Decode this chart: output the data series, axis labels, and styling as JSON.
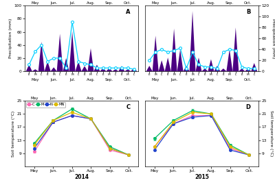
{
  "title_A": "A",
  "title_B": "B",
  "title_C": "C",
  "title_D": "D",
  "year_2014": "2014",
  "year_2015": "2015",
  "precip_ylabel": "Precipitation (mm)",
  "soil_ylabel": "Soil temperature (°C)",
  "months": [
    "May",
    "Jun.",
    "Jul.",
    "Aug.",
    "Sep.",
    "Oct."
  ],
  "sub_labels": [
    "E",
    "M",
    "L"
  ],
  "precip_ylim_A": [
    0,
    100
  ],
  "precip_ylim_B": [
    0,
    120
  ],
  "soil_ylim": [
    5,
    25
  ],
  "soil_yticks": [
    9,
    13,
    17,
    21,
    25
  ],
  "precip_yticks_A": [
    0,
    20,
    40,
    60,
    80,
    100
  ],
  "precip_yticks_B": [
    0,
    20,
    40,
    60,
    80,
    100,
    120
  ],
  "bar_data_A": [
    10,
    3,
    45,
    15,
    6,
    57,
    20,
    61,
    15,
    8,
    35,
    10,
    5,
    5,
    3,
    8,
    3,
    5
  ],
  "line_data_A": [
    10,
    30,
    40,
    15,
    20,
    20,
    5,
    75,
    15,
    12,
    10,
    5,
    5,
    5,
    5,
    5,
    5,
    3
  ],
  "bar_data_B": [
    10,
    65,
    20,
    25,
    78,
    40,
    10,
    110,
    25,
    5,
    22,
    10,
    5,
    40,
    80,
    5,
    5,
    15
  ],
  "line_data_B": [
    20,
    35,
    40,
    35,
    38,
    42,
    5,
    35,
    12,
    8,
    8,
    5,
    35,
    40,
    38,
    8,
    5,
    5
  ],
  "soil_months_x": [
    0,
    1,
    2,
    3,
    4,
    5
  ],
  "soil_C_2014": [
    9.5,
    18.5,
    20.5,
    19.5,
    10.0,
    8.5
  ],
  "soil_M_2014": [
    12.0,
    19.0,
    22.5,
    19.5,
    11.0,
    8.5
  ],
  "soil_N_2014": [
    10.5,
    18.5,
    20.5,
    19.5,
    10.5,
    8.5
  ],
  "soil_MN_2014": [
    11.5,
    19.0,
    21.5,
    19.5,
    10.5,
    8.5
  ],
  "soil_C_2015": [
    11.0,
    18.0,
    20.5,
    20.5,
    10.5,
    8.5
  ],
  "soil_M_2015": [
    13.5,
    19.0,
    22.0,
    21.0,
    11.5,
    8.5
  ],
  "soil_N_2015": [
    10.0,
    18.0,
    20.0,
    20.5,
    10.0,
    8.5
  ],
  "soil_MN_2015": [
    11.0,
    18.5,
    21.5,
    21.0,
    11.0,
    8.5
  ],
  "soil_err_C_2014": [
    0.3,
    0.3,
    0.3,
    0.3,
    0.3,
    0.2
  ],
  "soil_err_M_2014": [
    0.3,
    0.3,
    0.5,
    0.3,
    0.3,
    0.2
  ],
  "soil_err_N_2014": [
    0.3,
    0.3,
    0.3,
    0.3,
    0.3,
    0.2
  ],
  "soil_err_MN_2014": [
    0.3,
    0.3,
    0.3,
    0.3,
    0.3,
    0.2
  ],
  "soil_err_C_2015": [
    0.3,
    0.3,
    0.3,
    0.3,
    0.3,
    0.2
  ],
  "soil_err_M_2015": [
    0.5,
    0.3,
    0.5,
    0.3,
    0.3,
    0.2
  ],
  "soil_err_N_2015": [
    0.3,
    0.3,
    0.3,
    0.3,
    0.3,
    0.2
  ],
  "soil_err_MN_2015": [
    0.3,
    0.3,
    0.3,
    0.3,
    0.3,
    0.2
  ],
  "color_C": "#ff69b4",
  "color_M": "#00bb66",
  "color_N": "#2244cc",
  "color_MN": "#ddbb00",
  "bar_fill_color": "#4b0082",
  "line_color": "#00cfff",
  "bg_color": "#ffffff"
}
